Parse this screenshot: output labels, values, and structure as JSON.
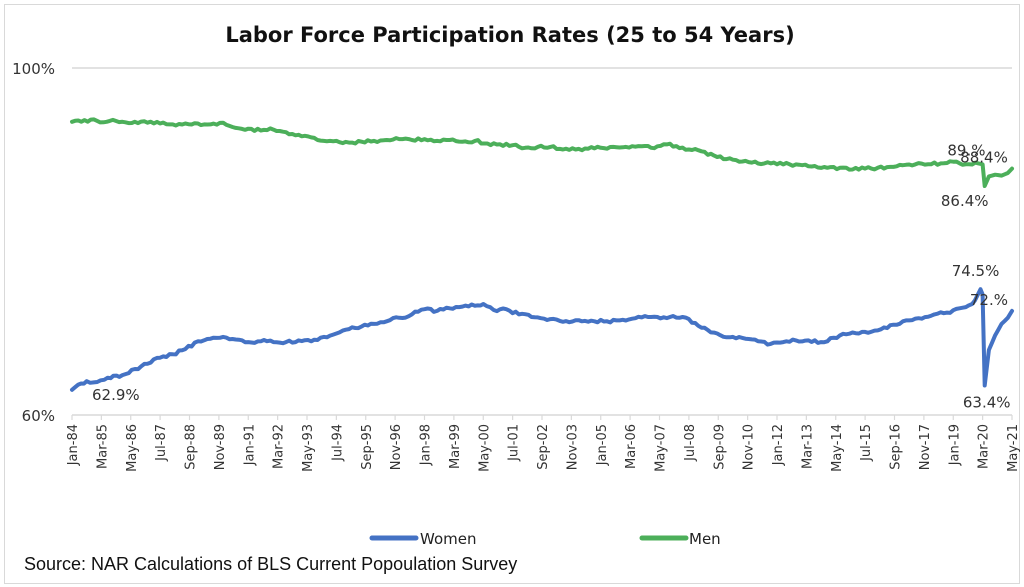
{
  "chart_data": {
    "type": "line",
    "title": "Labor Force Participation Rates (25 to 54 Years)",
    "xlabel": "",
    "ylabel": "",
    "ylim": [
      60,
      100
    ],
    "yticks": [
      "100%",
      "60%"
    ],
    "ytick_values": [
      100,
      60
    ],
    "x_range": [
      "Jan-84",
      "May-21"
    ],
    "x_tick_labels": [
      "Jan-84",
      "Mar-85",
      "May-86",
      "Jul-87",
      "Sep-88",
      "Nov-89",
      "Jan-91",
      "Mar-92",
      "May-93",
      "Jul-94",
      "Sep-95",
      "Nov-96",
      "Jan-98",
      "Mar-99",
      "May-00",
      "Jul-01",
      "Sep-02",
      "Nov-03",
      "Jan-05",
      "Mar-06",
      "May-07",
      "Jul-08",
      "Sep-09",
      "Nov-10",
      "Jan-12",
      "Mar-13",
      "May-14",
      "Jul-15",
      "Sep-16",
      "Nov-17",
      "Jan-19",
      "Mar-20",
      "May-21"
    ],
    "grid": false,
    "legend_position": "bottom",
    "series": [
      {
        "name": "Women",
        "color": "#4472c4",
        "points": [
          [
            "Jan-84",
            62.9
          ],
          [
            "Apr-84",
            63.5
          ],
          [
            "Aug-84",
            63.9
          ],
          [
            "Jan-85",
            63.8
          ],
          [
            "Jun-85",
            64.3
          ],
          [
            "Jan-86",
            64.6
          ],
          [
            "Jul-86",
            65.3
          ],
          [
            "Jan-87",
            65.9
          ],
          [
            "Jul-87",
            66.6
          ],
          [
            "Jan-88",
            67.0
          ],
          [
            "Jul-88",
            67.6
          ],
          [
            "Jan-89",
            68.5
          ],
          [
            "Jul-89",
            68.8
          ],
          [
            "Jan-90",
            69.0
          ],
          [
            "Jul-90",
            68.7
          ],
          [
            "Jan-91",
            68.4
          ],
          [
            "Jul-91",
            68.5
          ],
          [
            "Jan-92",
            68.4
          ],
          [
            "Jul-92",
            68.4
          ],
          [
            "Jan-93",
            68.6
          ],
          [
            "Jul-93",
            68.5
          ],
          [
            "Jan-94",
            69.0
          ],
          [
            "Jul-94",
            69.4
          ],
          [
            "Jan-95",
            69.9
          ],
          [
            "Jul-95",
            70.2
          ],
          [
            "Jan-96",
            70.5
          ],
          [
            "Jul-96",
            70.8
          ],
          [
            "Jan-97",
            71.2
          ],
          [
            "Jul-97",
            71.6
          ],
          [
            "Jan-98",
            72.2
          ],
          [
            "Jul-98",
            72.0
          ],
          [
            "Jan-99",
            72.3
          ],
          [
            "Jul-99",
            72.5
          ],
          [
            "Jan-00",
            72.6
          ],
          [
            "May-00",
            72.8
          ],
          [
            "Oct-00",
            72.1
          ],
          [
            "Apr-01",
            72.2
          ],
          [
            "Oct-01",
            71.6
          ],
          [
            "Apr-02",
            71.3
          ],
          [
            "Oct-02",
            71.1
          ],
          [
            "Apr-03",
            71.0
          ],
          [
            "Oct-03",
            70.7
          ],
          [
            "Apr-04",
            70.8
          ],
          [
            "Oct-04",
            70.8
          ],
          [
            "Apr-05",
            70.8
          ],
          [
            "Oct-05",
            70.9
          ],
          [
            "Apr-06",
            71.1
          ],
          [
            "Oct-06",
            71.4
          ],
          [
            "Apr-07",
            71.3
          ],
          [
            "Oct-07",
            71.3
          ],
          [
            "Apr-08",
            71.3
          ],
          [
            "Oct-08",
            70.6
          ],
          [
            "Apr-09",
            69.8
          ],
          [
            "Oct-09",
            69.2
          ],
          [
            "Apr-10",
            69.0
          ],
          [
            "Oct-10",
            68.8
          ],
          [
            "Apr-11",
            68.5
          ],
          [
            "Oct-11",
            68.2
          ],
          [
            "Apr-12",
            68.4
          ],
          [
            "Oct-12",
            68.6
          ],
          [
            "Apr-13",
            68.6
          ],
          [
            "Oct-13",
            68.4
          ],
          [
            "Apr-14",
            68.9
          ],
          [
            "Oct-14",
            69.3
          ],
          [
            "Apr-15",
            69.4
          ],
          [
            "Oct-15",
            69.6
          ],
          [
            "Apr-16",
            70.1
          ],
          [
            "Oct-16",
            70.4
          ],
          [
            "Apr-17",
            70.9
          ],
          [
            "Oct-17",
            71.1
          ],
          [
            "Apr-18",
            71.6
          ],
          [
            "Oct-18",
            71.8
          ],
          [
            "Apr-19",
            72.3
          ],
          [
            "Oct-19",
            72.8
          ],
          [
            "Feb-20",
            74.5
          ],
          [
            "Mar-20",
            73.9
          ],
          [
            "Apr-20",
            63.4
          ],
          [
            "Jun-20",
            67.5
          ],
          [
            "Sep-20",
            69.2
          ],
          [
            "Dec-20",
            70.5
          ],
          [
            "Mar-21",
            71.2
          ],
          [
            "May-21",
            72.0
          ]
        ],
        "annotations": [
          {
            "label": "62.9%",
            "at": "Jan-84",
            "value": 62.9
          },
          {
            "label": "74.5%",
            "at": "Feb-20",
            "value": 74.5
          },
          {
            "label": "63.4%",
            "at": "Apr-20",
            "value": 63.4
          },
          {
            "label": "72.%",
            "at": "May-21",
            "value": 72.0
          }
        ]
      },
      {
        "name": "Men",
        "color": "#4caf5a",
        "points": [
          [
            "Jan-84",
            93.8
          ],
          [
            "Jul-84",
            94.0
          ],
          [
            "Jan-85",
            93.9
          ],
          [
            "Jul-85",
            93.9
          ],
          [
            "Jan-86",
            93.8
          ],
          [
            "Jul-86",
            93.8
          ],
          [
            "Jan-87",
            93.7
          ],
          [
            "Jul-87",
            93.6
          ],
          [
            "Jan-88",
            93.5
          ],
          [
            "Jul-88",
            93.6
          ],
          [
            "Jan-89",
            93.6
          ],
          [
            "Jul-89",
            93.5
          ],
          [
            "Jan-90",
            93.7
          ],
          [
            "Jul-90",
            93.1
          ],
          [
            "Jan-91",
            93.0
          ],
          [
            "Jul-91",
            92.8
          ],
          [
            "Jan-92",
            92.9
          ],
          [
            "Jul-92",
            92.6
          ],
          [
            "Jan-93",
            92.3
          ],
          [
            "Jul-93",
            92.0
          ],
          [
            "Jan-94",
            91.6
          ],
          [
            "Jul-94",
            91.6
          ],
          [
            "Jan-95",
            91.4
          ],
          [
            "Jul-95",
            91.5
          ],
          [
            "Jan-96",
            91.6
          ],
          [
            "Jul-96",
            91.7
          ],
          [
            "Jan-97",
            91.8
          ],
          [
            "Jul-97",
            91.7
          ],
          [
            "Jan-98",
            91.8
          ],
          [
            "Jul-98",
            91.6
          ],
          [
            "Jan-99",
            91.7
          ],
          [
            "Jul-99",
            91.5
          ],
          [
            "Jan-00",
            91.6
          ],
          [
            "Jul-00",
            91.3
          ],
          [
            "Jan-01",
            91.2
          ],
          [
            "Jul-01",
            91.1
          ],
          [
            "Jan-02",
            90.8
          ],
          [
            "Jul-02",
            90.9
          ],
          [
            "Jan-03",
            90.9
          ],
          [
            "Jul-03",
            90.6
          ],
          [
            "Jan-04",
            90.6
          ],
          [
            "Jul-04",
            90.7
          ],
          [
            "Jan-05",
            90.8
          ],
          [
            "Jul-05",
            90.9
          ],
          [
            "Jan-06",
            90.9
          ],
          [
            "Jul-06",
            91.0
          ],
          [
            "Jan-07",
            90.8
          ],
          [
            "Jul-07",
            91.2
          ],
          [
            "Jan-08",
            91.0
          ],
          [
            "Jul-08",
            90.6
          ],
          [
            "Jan-09",
            90.4
          ],
          [
            "Jul-09",
            89.9
          ],
          [
            "Jan-10",
            89.5
          ],
          [
            "Jul-10",
            89.2
          ],
          [
            "Jan-11",
            89.1
          ],
          [
            "Jul-11",
            89.0
          ],
          [
            "Jan-12",
            88.9
          ],
          [
            "Jul-12",
            88.9
          ],
          [
            "Jan-13",
            88.8
          ],
          [
            "Jul-13",
            88.7
          ],
          [
            "Jan-14",
            88.5
          ],
          [
            "Jul-14",
            88.5
          ],
          [
            "Jan-15",
            88.3
          ],
          [
            "Jul-15",
            88.4
          ],
          [
            "Jan-16",
            88.5
          ],
          [
            "Jul-16",
            88.6
          ],
          [
            "Jan-17",
            88.8
          ],
          [
            "Jul-17",
            88.9
          ],
          [
            "Jan-18",
            88.9
          ],
          [
            "Jul-18",
            89.0
          ],
          [
            "Jan-19",
            89.2
          ],
          [
            "Jul-19",
            88.9
          ],
          [
            "Jan-20",
            89.0
          ],
          [
            "Mar-20",
            88.9
          ],
          [
            "Apr-20",
            86.4
          ],
          [
            "Jun-20",
            87.5
          ],
          [
            "Sep-20",
            87.7
          ],
          [
            "Dec-20",
            87.6
          ],
          [
            "Mar-21",
            87.9
          ],
          [
            "May-21",
            88.4
          ]
        ],
        "annotations": [
          {
            "label": "89.%",
            "at": "Jan-20",
            "value": 89.0
          },
          {
            "label": "88.4%",
            "at": "May-21",
            "value": 88.4
          },
          {
            "label": "86.4%",
            "at": "Apr-20",
            "value": 86.4
          }
        ]
      }
    ],
    "legend": [
      "Women",
      "Men"
    ],
    "source_note": "Source: NAR Calculations of BLS Current Popoulation Survey"
  },
  "colors": {
    "women": "#4472c4",
    "men": "#4caf5a",
    "axis": "#d9d9d9",
    "text": "#333333"
  }
}
